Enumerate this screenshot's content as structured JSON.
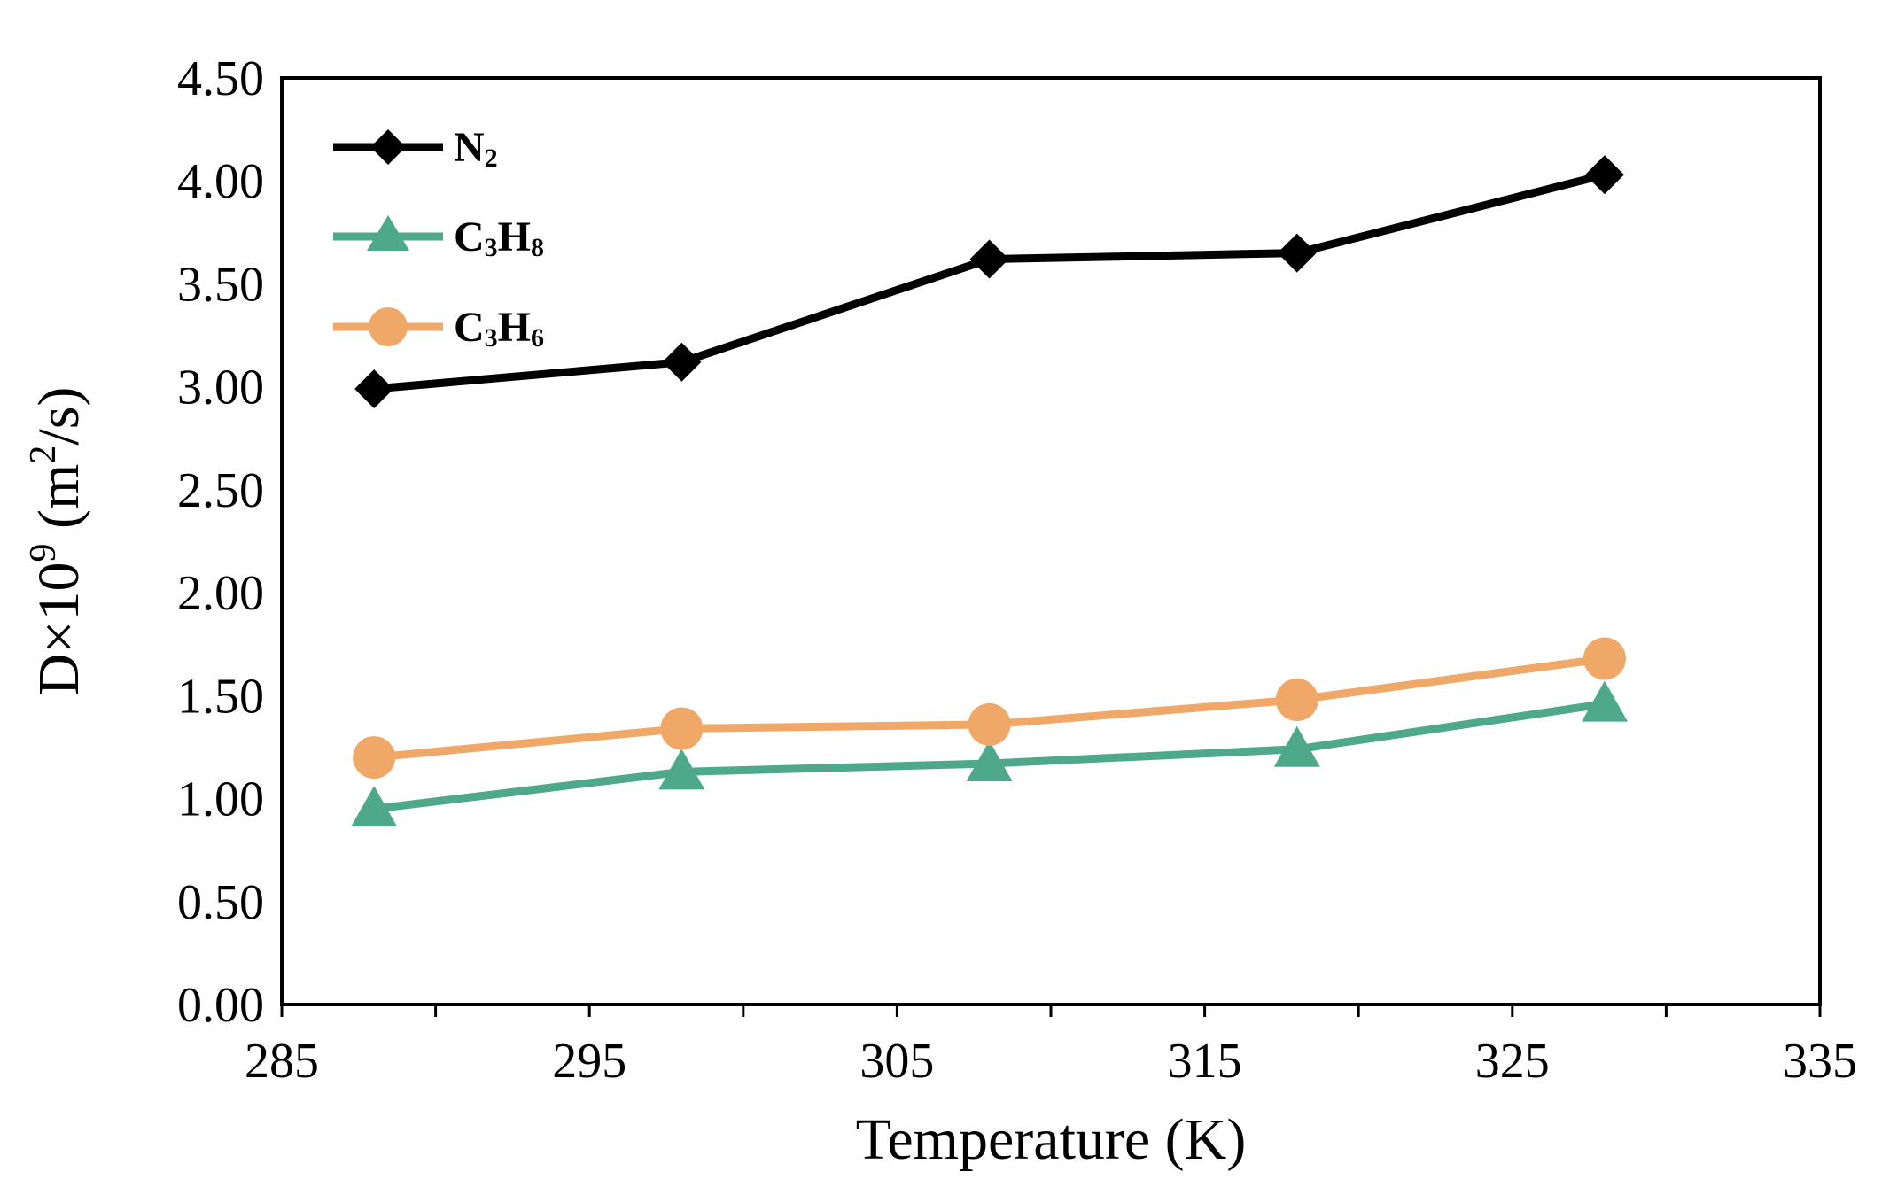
{
  "chart_data": {
    "type": "line",
    "title": "",
    "xlabel": "Temperature (K)",
    "ylabel": {
      "main": "D×10",
      "sup": "9",
      "units_open": " (m",
      "units_sup": "2",
      "units_close": "/s)"
    },
    "xlim": [
      285,
      335
    ],
    "ylim": [
      0,
      4.5
    ],
    "x_ticks": [
      "285",
      "295",
      "305",
      "315",
      "325",
      "335"
    ],
    "y_ticks": [
      "0.00",
      "0.50",
      "1.00",
      "1.50",
      "2.00",
      "2.50",
      "3.00",
      "3.50",
      "4.00",
      "4.50"
    ],
    "grid": false,
    "legend_position": "top-left",
    "series": [
      {
        "name": "N2",
        "label_base": "N",
        "label_sub": "2",
        "color": "#000000",
        "marker": "diamond",
        "x": [
          288,
          298,
          308,
          318,
          328
        ],
        "values": [
          2.99,
          3.12,
          3.62,
          3.65,
          4.03
        ]
      },
      {
        "name": "C3H8",
        "label_parts": [
          "C",
          "3",
          "H",
          "8"
        ],
        "color": "#4da98a",
        "marker": "triangle",
        "x": [
          288,
          298,
          308,
          318,
          328
        ],
        "values": [
          0.95,
          1.13,
          1.17,
          1.24,
          1.46
        ]
      },
      {
        "name": "C3H6",
        "label_parts": [
          "C",
          "3",
          "H",
          "6"
        ],
        "color": "#f0a868",
        "marker": "circle",
        "x": [
          288,
          298,
          308,
          318,
          328
        ],
        "values": [
          1.2,
          1.34,
          1.36,
          1.48,
          1.68
        ]
      }
    ]
  }
}
